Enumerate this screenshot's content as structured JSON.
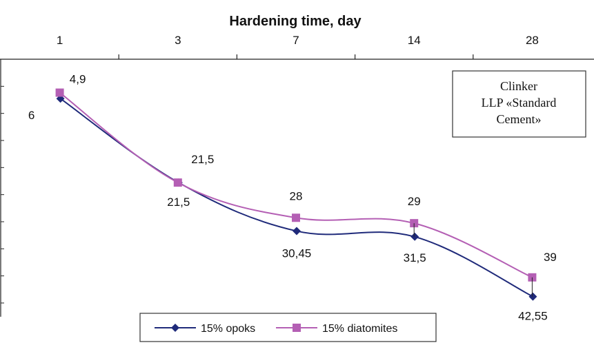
{
  "chart_data": {
    "type": "line",
    "xlabel": "Hardening time, day",
    "categories": [
      "1",
      "3",
      "7",
      "14",
      "28"
    ],
    "y_axis_inverted": true,
    "grid": false,
    "legend_position": "bottom",
    "series": [
      {
        "name": "15% opoks",
        "color": "#1f2a7a",
        "marker": "diamond",
        "values": [
          6,
          21.5,
          30.45,
          31.5,
          42.55
        ],
        "labels": [
          "6",
          "21,5",
          "30,45",
          "31,5",
          "42,55"
        ]
      },
      {
        "name": "15% diatomites",
        "color": "#b45fb4",
        "marker": "square",
        "values": [
          4.9,
          21.5,
          28,
          29,
          39
        ],
        "labels": [
          "4,9",
          "21,5",
          "28",
          "29",
          "39"
        ]
      }
    ],
    "annotation": {
      "lines": [
        "Clinker",
        "LLP «Standard",
        "Cement»"
      ]
    }
  }
}
